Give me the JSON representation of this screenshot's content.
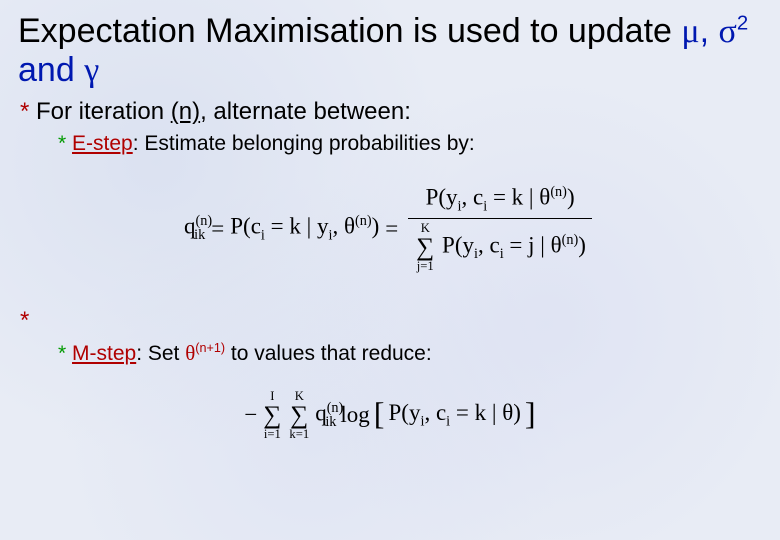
{
  "colors": {
    "background": "#e8ecf5",
    "title_accent": "#0018b0",
    "bullet_top": "#b00000",
    "bullet_sub": "#009a00",
    "step_label": "#b00000",
    "text": "#000000"
  },
  "fonts": {
    "body_family": "Comic Sans MS",
    "formula_family": "Georgia",
    "title_size_pt": 34,
    "bullet_top_size_pt": 24,
    "bullet_sub_size_pt": 21,
    "formula_size_pt": 23
  },
  "title": {
    "plain_part": "Expectation Maximisation is used to update ",
    "symbol_mu": "μ",
    "sep1": ", ",
    "symbol_sigma": "σ",
    "sigma_exp": "2",
    "sep2": " and ",
    "symbol_gamma": "γ"
  },
  "bullets": {
    "top": {
      "prefix": "For iteration ",
      "iter": "(n)",
      "suffix": ", alternate between:"
    },
    "estep": {
      "label": "E-step",
      "text": ": Estimate belonging probabilities by:"
    },
    "mstep": {
      "label": "M-step",
      "prefix": ": Set ",
      "theta": "θ",
      "exp": "(n+1)",
      "suffix": " to values that reduce:"
    }
  },
  "formula_estep": {
    "lhs_q": "q",
    "lhs_q_sub": "ik",
    "lhs_q_sup": "(n)",
    "eq": " = ",
    "p1": "P(c",
    "p1_sub": "i",
    "p1_mid": " = k | y",
    "p1_sub2": "i",
    "p1_comma": ", ",
    "theta": "θ",
    "theta_sup": "(n)",
    "close": ")",
    "num_p": "P(y",
    "num_sub": "i",
    "num_mid": ", c",
    "num_sub2": "i",
    "num_eq": " = k | ",
    "den_sum_lower": "j=1",
    "den_sum_upper": "K",
    "den_p": "P(y",
    "den_sub": "i",
    "den_mid": ", c",
    "den_sub2": "i",
    "den_eq": " = j | "
  },
  "formula_mstep": {
    "minus": "−",
    "sum1_lower": "i=1",
    "sum1_upper": "I",
    "sum2_lower": "k=1",
    "sum2_upper": "K",
    "q": "q",
    "q_sub": "ik",
    "q_sup": "(n)",
    "log": " log",
    "p": "P(y",
    "p_sub": "i",
    "p_mid": ", c",
    "p_sub2": "i",
    "p_eq": " = k | ",
    "theta": "θ",
    "close": ")"
  }
}
